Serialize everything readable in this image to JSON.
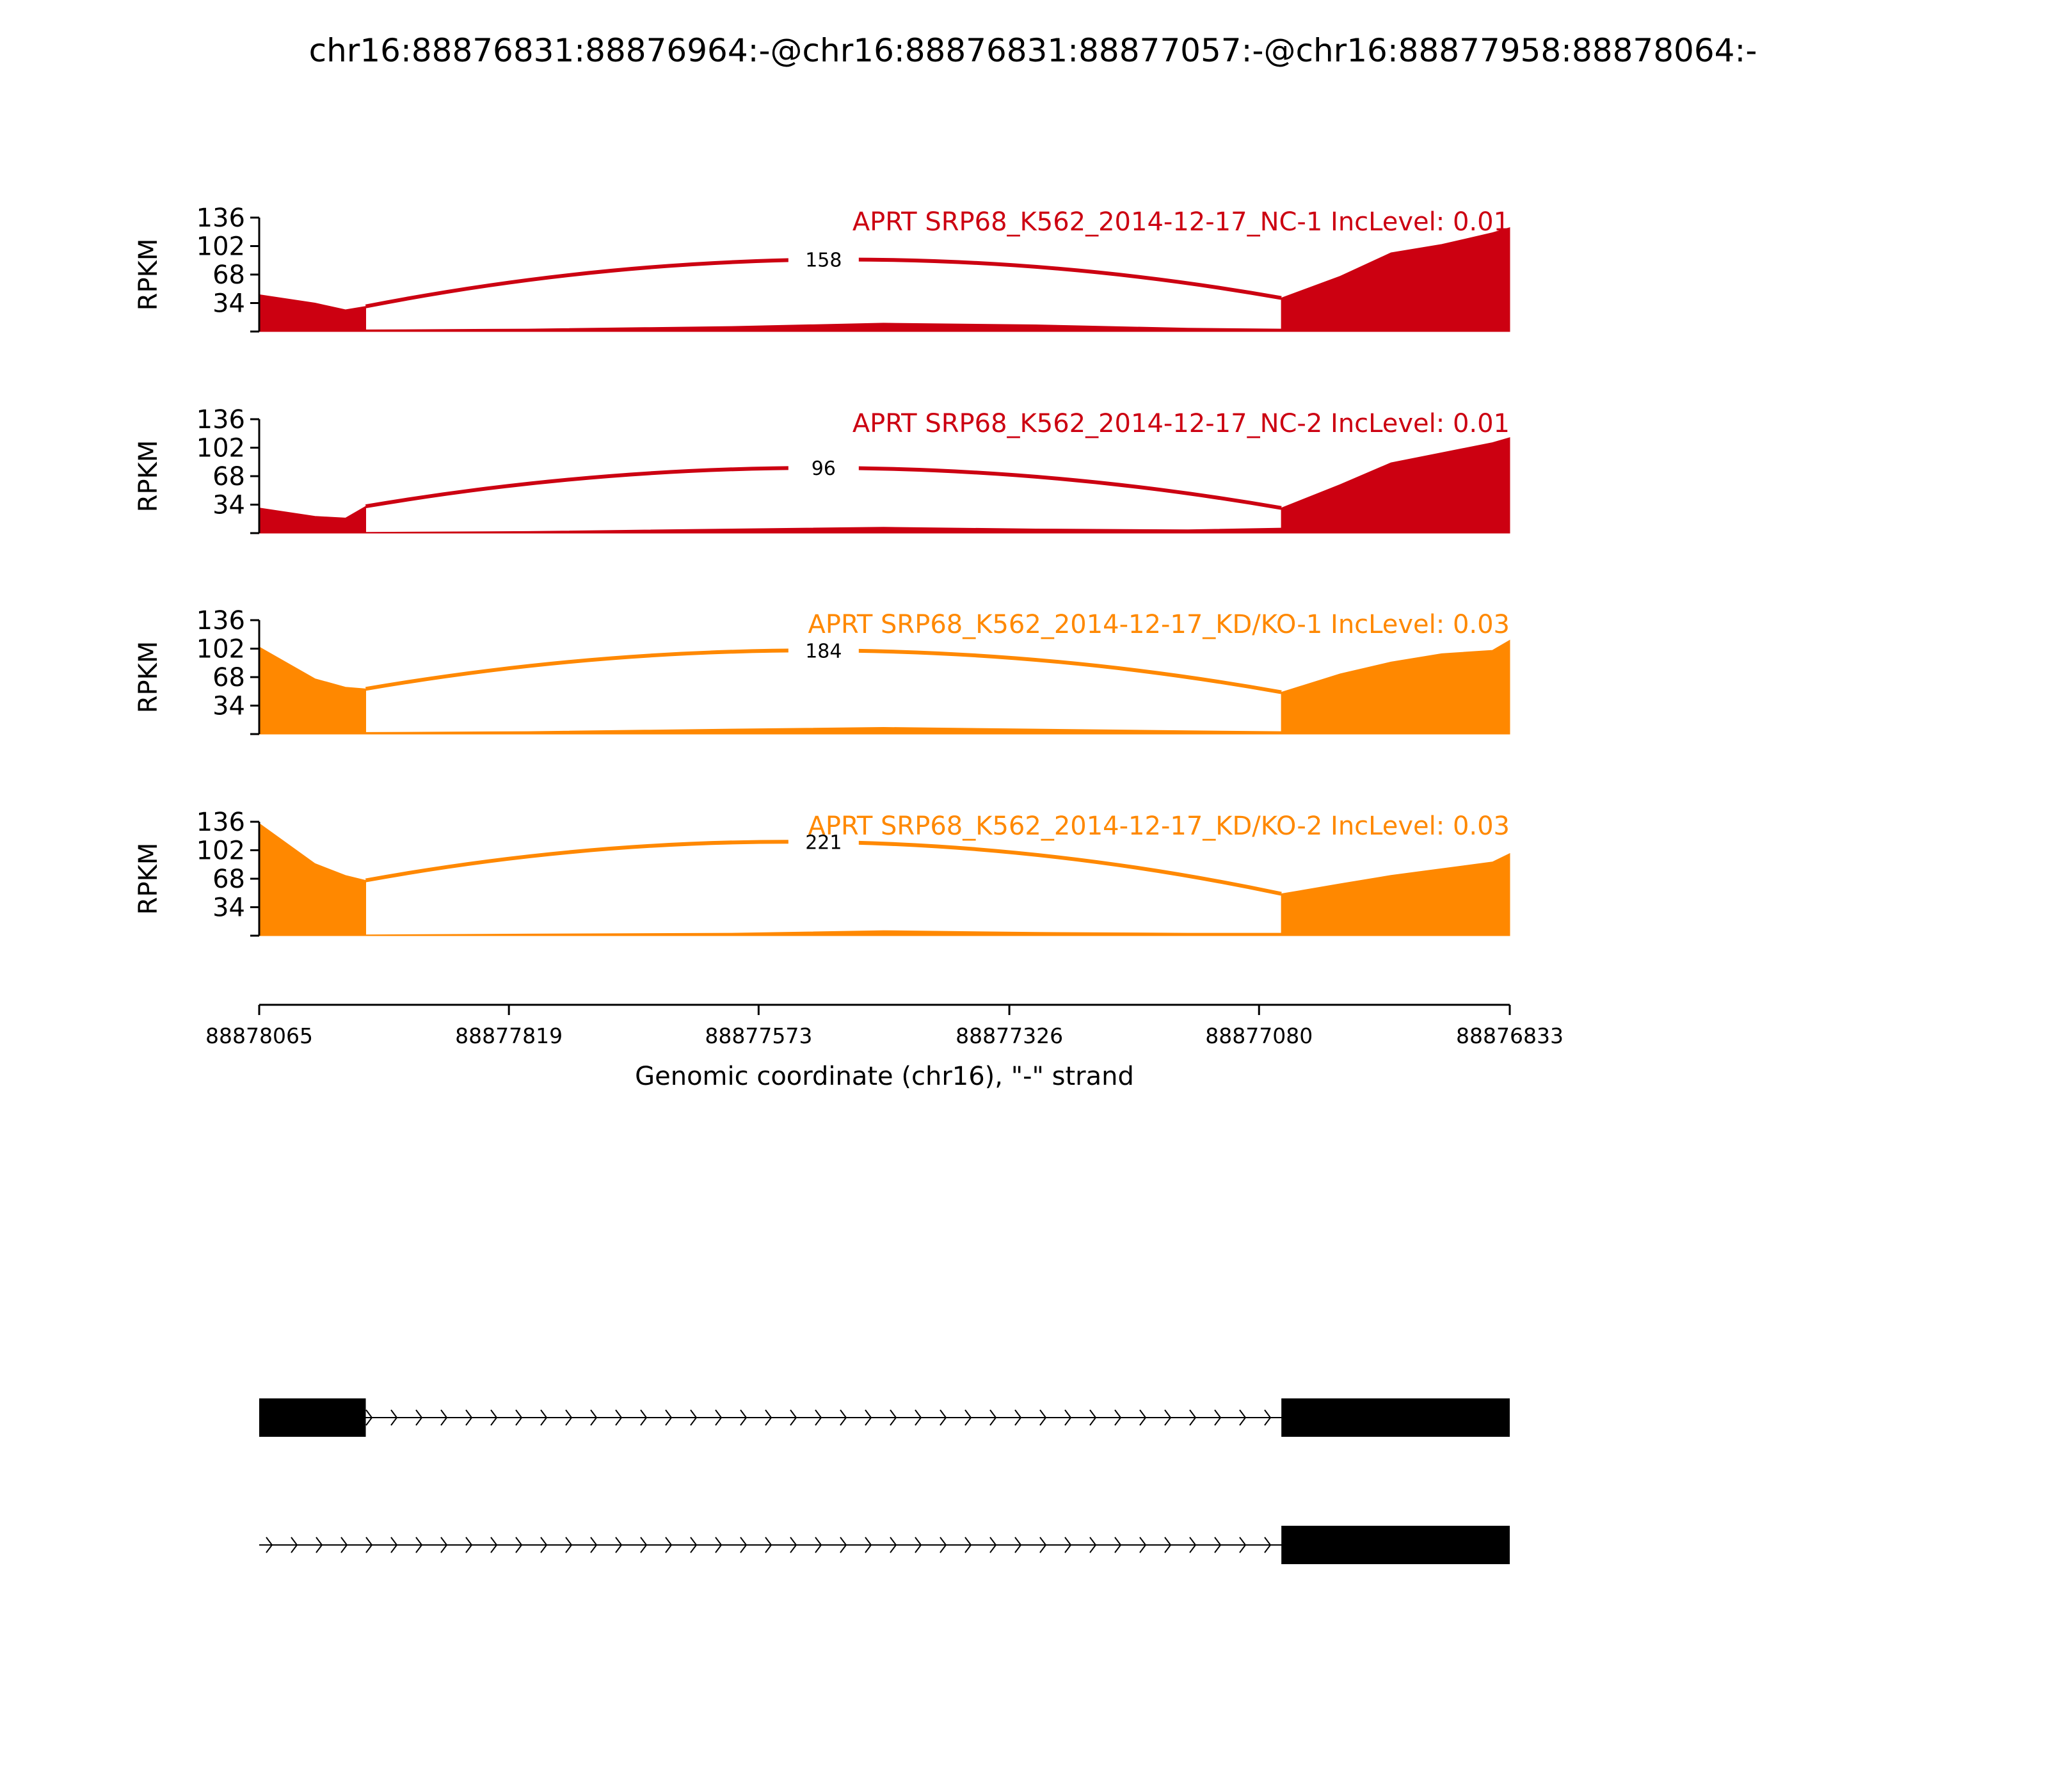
{
  "title": "chr16:88876831:88876964:-@chr16:88876831:88877057:-@chr16:88877958:88878064:-",
  "chart_data": {
    "type": "area",
    "subtype": "sashimi",
    "x_axis": {
      "label": "Genomic coordinate (chr16), \"-\" strand",
      "ticks": [
        "88878065",
        "88877819",
        "88877573",
        "88877326",
        "88877080",
        "88876833"
      ],
      "range": [
        88878065,
        88876833
      ],
      "reversed": true
    },
    "y_axis": {
      "label": "RPKM",
      "ticks": [
        "34",
        "68",
        "102",
        "136"
      ],
      "range": [
        0,
        136
      ]
    },
    "tracks": [
      {
        "title": "APRT SRP68_K562_2014-12-17_NC-1 IncLevel: 0.01",
        "color": "#cc0011",
        "junction_reads": "158",
        "coverage": [
          {
            "x": [
              88878065,
              88878010,
              88877980,
              88877960
            ],
            "y": [
              44,
              34,
              26,
              30
            ]
          },
          {
            "x": [
              88877960,
              88877800,
              88877600,
              88877450,
              88877300,
              88877150,
              88877058
            ],
            "y": [
              2,
              3,
              6,
              10,
              8,
              4,
              3
            ]
          },
          {
            "x": [
              88877058,
              88877000,
              88876950,
              88876900,
              88876850,
              88876833
            ],
            "y": [
              40,
              66,
              94,
              104,
              118,
              124
            ]
          }
        ]
      },
      {
        "title": "APRT SRP68_K562_2014-12-17_NC-2 IncLevel: 0.01",
        "color": "#cc0011",
        "junction_reads": "96",
        "coverage": [
          {
            "x": [
              88878065,
              88878010,
              88877980,
              88877960
            ],
            "y": [
              30,
              20,
              18,
              32
            ]
          },
          {
            "x": [
              88877960,
              88877800,
              88877600,
              88877450,
              88877300,
              88877150,
              88877058
            ],
            "y": [
              1,
              2,
              5,
              7,
              5,
              4,
              6
            ]
          },
          {
            "x": [
              88877058,
              88877000,
              88876950,
              88876900,
              88876850,
              88876833
            ],
            "y": [
              30,
              58,
              84,
              96,
              108,
              114
            ]
          }
        ]
      },
      {
        "title": "APRT SRP68_K562_2014-12-17_KD/KO-1 IncLevel: 0.03",
        "color": "#ff8800",
        "junction_reads": "184",
        "coverage": [
          {
            "x": [
              88878065,
              88878010,
              88877980,
              88877960
            ],
            "y": [
              104,
              66,
              56,
              54
            ]
          },
          {
            "x": [
              88877960,
              88877800,
              88877600,
              88877450,
              88877300,
              88877150,
              88877058
            ],
            "y": [
              2,
              3,
              6,
              8,
              6,
              4,
              3
            ]
          },
          {
            "x": [
              88877058,
              88877000,
              88876950,
              88876900,
              88876850,
              88876833
            ],
            "y": [
              50,
              72,
              86,
              96,
              100,
              112
            ]
          }
        ]
      },
      {
        "title": "APRT SRP68_K562_2014-12-17_KD/KO-2 IncLevel: 0.03",
        "color": "#ff8800",
        "junction_reads": "221",
        "coverage": [
          {
            "x": [
              88878065,
              88878010,
              88877980,
              88877960
            ],
            "y": [
              134,
              86,
              72,
              66
            ]
          },
          {
            "x": [
              88877960,
              88877800,
              88877600,
              88877450,
              88877300,
              88877150,
              88877058
            ],
            "y": [
              1,
              2,
              3,
              6,
              4,
              3,
              3
            ]
          },
          {
            "x": [
              88877058,
              88877000,
              88876950,
              88876900,
              88876850,
              88876833
            ],
            "y": [
              50,
              62,
              72,
              80,
              88,
              98
            ]
          }
        ]
      }
    ],
    "isoforms": [
      {
        "exons": [
          [
            88878065,
            88877960
          ],
          [
            88877058,
            88876833
          ]
        ],
        "line": [
          88878065,
          88876833
        ]
      },
      {
        "exons": [
          [
            88877058,
            88876833
          ]
        ],
        "line": [
          88878065,
          88876833
        ]
      }
    ]
  }
}
